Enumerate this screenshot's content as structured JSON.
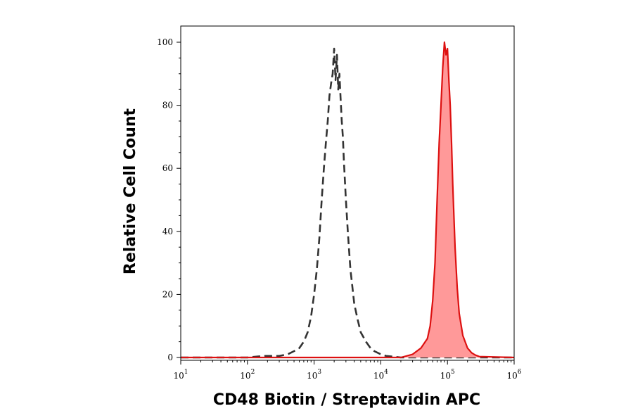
{
  "chart_data": {
    "type": "area",
    "title": "",
    "xlabel": "CD48 Biotin / Streptavidin APC",
    "ylabel": "Relative Cell Count",
    "x_scale": "log",
    "xlim": [
      10,
      1000000
    ],
    "ylim": [
      0,
      105
    ],
    "x_ticks": [
      {
        "base": "10",
        "exp": "1",
        "value": 10
      },
      {
        "base": "10",
        "exp": "2",
        "value": 100
      },
      {
        "base": "10",
        "exp": "3",
        "value": 1000
      },
      {
        "base": "10",
        "exp": "4",
        "value": 10000
      },
      {
        "base": "10",
        "exp": "5",
        "value": 100000
      },
      {
        "base": "10",
        "exp": "6",
        "value": 1000000
      }
    ],
    "y_ticks": [
      "0",
      "20",
      "40",
      "60",
      "80",
      "100"
    ],
    "grid": false,
    "series": [
      {
        "style": "dashed-line",
        "color": "#333333",
        "x": [
          10,
          100,
          180,
          300,
          400,
          500,
          600,
          700,
          800,
          900,
          1000,
          1100,
          1200,
          1300,
          1400,
          1500,
          1600,
          1700,
          1800,
          1900,
          2000,
          2100,
          2200,
          2300,
          2400,
          2500,
          2600,
          2700,
          2800,
          3000,
          3200,
          3500,
          4000,
          4500,
          5000,
          6000,
          7000,
          8000,
          10000,
          12000,
          15000,
          20000,
          1000000
        ],
        "y": [
          0,
          0,
          0.5,
          0.5,
          1,
          2,
          3,
          5,
          8,
          13,
          20,
          28,
          38,
          50,
          60,
          68,
          75,
          83,
          87,
          90,
          98,
          88,
          96,
          85,
          90,
          82,
          75,
          70,
          62,
          50,
          40,
          28,
          17,
          12,
          8,
          5,
          3,
          2,
          1,
          0.5,
          0.3,
          0,
          0
        ]
      },
      {
        "style": "filled-area",
        "color": "#dd1111",
        "fill": "#ff9999",
        "x": [
          10,
          20000,
          30000,
          40000,
          50000,
          55000,
          60000,
          65000,
          70000,
          75000,
          80000,
          85000,
          90000,
          95000,
          100000,
          105000,
          110000,
          115000,
          120000,
          130000,
          140000,
          150000,
          170000,
          200000,
          230000,
          260000,
          300000,
          1000000
        ],
        "y": [
          0,
          0,
          1,
          3,
          6,
          10,
          18,
          30,
          50,
          68,
          80,
          92,
          100,
          96,
          98,
          88,
          80,
          68,
          55,
          35,
          22,
          14,
          7,
          3,
          1.5,
          0.8,
          0.3,
          0
        ]
      }
    ]
  }
}
